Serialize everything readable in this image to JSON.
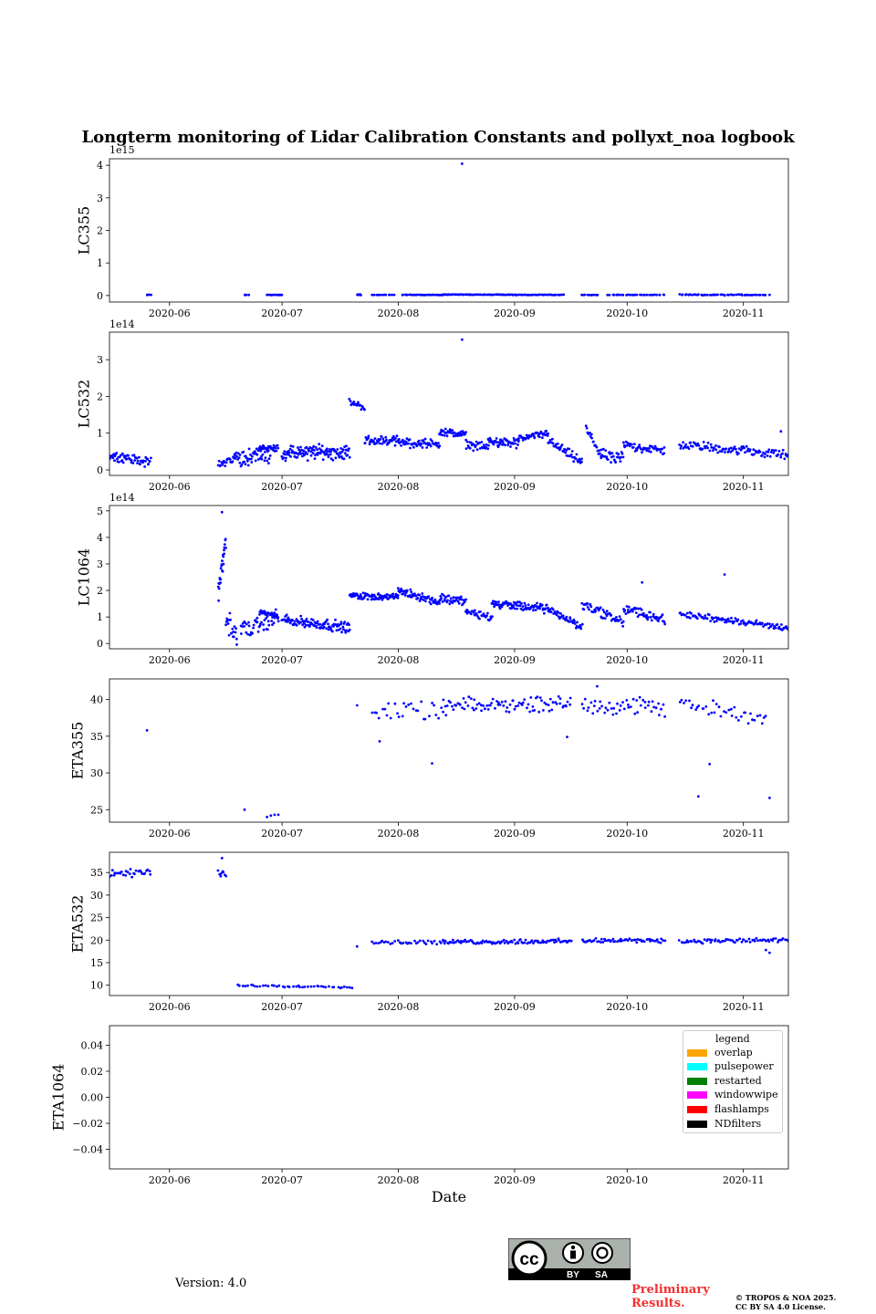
{
  "page": {
    "title": "Longterm monitoring of Lidar Calibration Constants and pollyxt_noa logbook",
    "xlabel": "Date",
    "version": "Version: 4.0",
    "preliminary": [
      "Preliminary",
      "Results."
    ],
    "copyright": [
      "© TROPOS & NOA 2025.",
      "CC BY SA 4.0 License."
    ],
    "license_badge": {
      "cc": "cc",
      "by": "BY",
      "sa": "SA"
    }
  },
  "legend": {
    "title": "legend",
    "items": [
      {
        "label": "overlap",
        "color": "#ffa500"
      },
      {
        "label": "pulsepower",
        "color": "#00ffff"
      },
      {
        "label": "restarted",
        "color": "#008000"
      },
      {
        "label": "windowwipe",
        "color": "#ff00ff"
      },
      {
        "label": "flashlamps",
        "color": "#ff0000"
      },
      {
        "label": "NDfilters",
        "color": "#000000"
      }
    ]
  },
  "chart_data": [
    {
      "type": "scatter",
      "name": "LC355",
      "ylabel": "LC355",
      "scale_text": "1e15",
      "x_domain": [
        "2020-05-16",
        "2020-11-13"
      ],
      "x_ticks": [
        "2020-06",
        "2020-07",
        "2020-08",
        "2020-09",
        "2020-10",
        "2020-11"
      ],
      "y_ticks": [
        0,
        1,
        2,
        3,
        4
      ],
      "ylim": [
        -0.2,
        4.2
      ],
      "color": "#0000ff",
      "segments": [
        {
          "start": "2020-05-26",
          "end": "2020-05-27",
          "y0": 0.02,
          "y1": 0.02,
          "noise": 0.01,
          "count": 4
        },
        {
          "start": "2020-06-21",
          "end": "2020-06-22",
          "y0": 0.02,
          "y1": 0.02,
          "noise": 0.01,
          "count": 3
        },
        {
          "start": "2020-06-27",
          "end": "2020-07-01",
          "y0": 0.02,
          "y1": 0.02,
          "noise": 0.01,
          "count": 12
        },
        {
          "start": "2020-07-21",
          "end": "2020-07-22",
          "y0": 0.04,
          "y1": 0.02,
          "noise": 0.03,
          "count": 6
        },
        {
          "start": "2020-07-25",
          "end": "2020-07-31",
          "y0": 0.02,
          "y1": 0.02,
          "noise": 0.01,
          "count": 12
        },
        {
          "start": "2020-08-02",
          "end": "2020-08-13",
          "y0": 0.02,
          "y1": 0.02,
          "noise": 0.01,
          "count": 30
        },
        {
          "start": "2020-08-13",
          "end": "2020-09-14",
          "y0": 0.03,
          "y1": 0.02,
          "noise": 0.01,
          "count": 90
        },
        {
          "start": "2020-09-19",
          "end": "2020-09-23",
          "y0": 0.02,
          "y1": 0.02,
          "noise": 0.01,
          "count": 10
        },
        {
          "start": "2020-09-26",
          "end": "2020-10-11",
          "y0": 0.02,
          "y1": 0.02,
          "noise": 0.01,
          "count": 30
        },
        {
          "start": "2020-10-15",
          "end": "2020-11-07",
          "y0": 0.02,
          "y1": 0.02,
          "noise": 0.02,
          "count": 50
        }
      ],
      "points": [
        {
          "x": "2020-08-18",
          "y": 4.05
        },
        {
          "x": "2020-11-08",
          "y": 0.02
        }
      ]
    },
    {
      "type": "scatter",
      "name": "LC532",
      "ylabel": "LC532",
      "scale_text": "1e14",
      "x_domain": [
        "2020-05-16",
        "2020-11-13"
      ],
      "x_ticks": [
        "2020-06",
        "2020-07",
        "2020-08",
        "2020-09",
        "2020-10",
        "2020-11"
      ],
      "y_ticks": [
        0,
        1,
        2,
        3
      ],
      "ylim": [
        -0.15,
        3.75
      ],
      "color": "#0000ff",
      "segments": [
        {
          "start": "2020-05-16",
          "end": "2020-05-27",
          "y0": 0.4,
          "y1": 0.2,
          "noise": 0.15,
          "count": 60
        },
        {
          "start": "2020-06-14",
          "end": "2020-06-18",
          "y0": 0.15,
          "y1": 0.3,
          "noise": 0.15,
          "count": 20
        },
        {
          "start": "2020-06-18",
          "end": "2020-06-28",
          "y0": 0.3,
          "y1": 0.45,
          "noise": 0.3,
          "count": 60
        },
        {
          "start": "2020-06-25",
          "end": "2020-06-30",
          "y0": 0.6,
          "y1": 0.6,
          "noise": 0.1,
          "count": 30
        },
        {
          "start": "2020-07-01",
          "end": "2020-07-19",
          "y0": 0.45,
          "y1": 0.5,
          "noise": 0.25,
          "count": 120
        },
        {
          "start": "2020-07-19",
          "end": "2020-07-23",
          "y0": 1.85,
          "y1": 1.7,
          "noise": 0.1,
          "count": 20
        },
        {
          "start": "2020-07-23",
          "end": "2020-08-01",
          "y0": 0.8,
          "y1": 0.8,
          "noise": 0.15,
          "count": 50
        },
        {
          "start": "2020-08-01",
          "end": "2020-08-12",
          "y0": 0.75,
          "y1": 0.7,
          "noise": 0.15,
          "count": 60
        },
        {
          "start": "2020-08-12",
          "end": "2020-08-19",
          "y0": 1.05,
          "y1": 0.95,
          "noise": 0.12,
          "count": 40
        },
        {
          "start": "2020-08-19",
          "end": "2020-08-25",
          "y0": 0.7,
          "y1": 0.6,
          "noise": 0.15,
          "count": 30
        },
        {
          "start": "2020-08-25",
          "end": "2020-09-02",
          "y0": 0.8,
          "y1": 0.7,
          "noise": 0.15,
          "count": 50
        },
        {
          "start": "2020-09-02",
          "end": "2020-09-10",
          "y0": 0.85,
          "y1": 1.0,
          "noise": 0.12,
          "count": 45
        },
        {
          "start": "2020-09-10",
          "end": "2020-09-19",
          "y0": 0.8,
          "y1": 0.2,
          "noise": 0.15,
          "count": 45
        },
        {
          "start": "2020-09-20",
          "end": "2020-09-24",
          "y0": 1.15,
          "y1": 0.4,
          "noise": 0.12,
          "count": 20
        },
        {
          "start": "2020-09-24",
          "end": "2020-09-30",
          "y0": 0.4,
          "y1": 0.3,
          "noise": 0.2,
          "count": 30
        },
        {
          "start": "2020-09-30",
          "end": "2020-10-11",
          "y0": 0.7,
          "y1": 0.5,
          "noise": 0.15,
          "count": 50
        },
        {
          "start": "2020-10-15",
          "end": "2020-11-13",
          "y0": 0.7,
          "y1": 0.4,
          "noise": 0.15,
          "count": 110
        }
      ],
      "points": [
        {
          "x": "2020-08-18",
          "y": 3.55
        },
        {
          "x": "2020-11-11",
          "y": 1.05
        }
      ]
    },
    {
      "type": "scatter",
      "name": "LC1064",
      "ylabel": "LC1064",
      "scale_text": "1e14",
      "x_domain": [
        "2020-05-16",
        "2020-11-13"
      ],
      "x_ticks": [
        "2020-06",
        "2020-07",
        "2020-08",
        "2020-09",
        "2020-10",
        "2020-11"
      ],
      "y_ticks": [
        0,
        1,
        2,
        3,
        4,
        5
      ],
      "ylim": [
        -0.2,
        5.2
      ],
      "color": "#0000ff",
      "segments": [
        {
          "start": "2020-06-14",
          "end": "2020-06-16",
          "y0": 1.8,
          "y1": 3.9,
          "noise": 0.5,
          "count": 25
        },
        {
          "start": "2020-06-16",
          "end": "2020-06-19",
          "y0": 1.0,
          "y1": 0.2,
          "noise": 0.5,
          "count": 20
        },
        {
          "start": "2020-06-20",
          "end": "2020-06-30",
          "y0": 0.5,
          "y1": 1.0,
          "noise": 0.4,
          "count": 50
        },
        {
          "start": "2020-06-25",
          "end": "2020-06-30",
          "y0": 1.2,
          "y1": 1.0,
          "noise": 0.12,
          "count": 30
        },
        {
          "start": "2020-07-01",
          "end": "2020-07-19",
          "y0": 0.9,
          "y1": 0.6,
          "noise": 0.25,
          "count": 110
        },
        {
          "start": "2020-07-19",
          "end": "2020-08-01",
          "y0": 1.8,
          "y1": 1.75,
          "noise": 0.15,
          "count": 80
        },
        {
          "start": "2020-08-01",
          "end": "2020-08-12",
          "y0": 2.0,
          "y1": 1.55,
          "noise": 0.2,
          "count": 70
        },
        {
          "start": "2020-08-12",
          "end": "2020-08-19",
          "y0": 1.7,
          "y1": 1.6,
          "noise": 0.2,
          "count": 40
        },
        {
          "start": "2020-08-19",
          "end": "2020-08-26",
          "y0": 1.2,
          "y1": 1.0,
          "noise": 0.2,
          "count": 35
        },
        {
          "start": "2020-08-26",
          "end": "2020-09-10",
          "y0": 1.5,
          "y1": 1.3,
          "noise": 0.2,
          "count": 90
        },
        {
          "start": "2020-09-10",
          "end": "2020-09-19",
          "y0": 1.3,
          "y1": 0.6,
          "noise": 0.2,
          "count": 45
        },
        {
          "start": "2020-09-19",
          "end": "2020-09-30",
          "y0": 1.5,
          "y1": 0.8,
          "noise": 0.25,
          "count": 55
        },
        {
          "start": "2020-09-30",
          "end": "2020-10-11",
          "y0": 1.3,
          "y1": 0.9,
          "noise": 0.25,
          "count": 50
        },
        {
          "start": "2020-10-15",
          "end": "2020-11-13",
          "y0": 1.1,
          "y1": 0.6,
          "noise": 0.15,
          "count": 110
        }
      ],
      "points": [
        {
          "x": "2020-06-15",
          "y": 4.95
        },
        {
          "x": "2020-10-27",
          "y": 2.6
        },
        {
          "x": "2020-10-05",
          "y": 2.3
        }
      ]
    },
    {
      "type": "scatter",
      "name": "ETA355",
      "ylabel": "ETA355",
      "scale_text": "",
      "x_domain": [
        "2020-05-16",
        "2020-11-13"
      ],
      "x_ticks": [
        "2020-06",
        "2020-07",
        "2020-08",
        "2020-09",
        "2020-10",
        "2020-11"
      ],
      "y_ticks": [
        25,
        30,
        35,
        40
      ],
      "ylim": [
        23.3,
        42.8
      ],
      "color": "#0000ff",
      "segments": [
        {
          "start": "2020-07-25",
          "end": "2020-08-13",
          "y0": 38.0,
          "y1": 38.5,
          "noise": 1.5,
          "count": 30
        },
        {
          "start": "2020-08-13",
          "end": "2020-09-16",
          "y0": 39.0,
          "y1": 39.5,
          "noise": 1.3,
          "count": 90
        },
        {
          "start": "2020-09-19",
          "end": "2020-10-11",
          "y0": 39.5,
          "y1": 38.8,
          "noise": 1.5,
          "count": 50
        },
        {
          "start": "2020-10-15",
          "end": "2020-11-07",
          "y0": 39.5,
          "y1": 37.5,
          "noise": 1.2,
          "count": 40
        }
      ],
      "points": [
        {
          "x": "2020-05-26",
          "y": 35.8
        },
        {
          "x": "2020-06-21",
          "y": 25.0
        },
        {
          "x": "2020-06-27",
          "y": 24.0
        },
        {
          "x": "2020-06-28",
          "y": 24.2
        },
        {
          "x": "2020-06-30",
          "y": 24.3
        },
        {
          "x": "2020-06-29",
          "y": 24.3
        },
        {
          "x": "2020-07-21",
          "y": 39.2
        },
        {
          "x": "2020-07-27",
          "y": 34.3
        },
        {
          "x": "2020-08-10",
          "y": 31.3
        },
        {
          "x": "2020-09-15",
          "y": 34.9
        },
        {
          "x": "2020-10-20",
          "y": 26.8
        },
        {
          "x": "2020-10-23",
          "y": 31.2
        },
        {
          "x": "2020-11-08",
          "y": 26.6
        },
        {
          "x": "2020-09-23",
          "y": 41.8
        }
      ]
    },
    {
      "type": "scatter",
      "name": "ETA532",
      "ylabel": "ETA532",
      "scale_text": "",
      "x_domain": [
        "2020-05-16",
        "2020-11-13"
      ],
      "x_ticks": [
        "2020-06",
        "2020-07",
        "2020-08",
        "2020-09",
        "2020-10",
        "2020-11"
      ],
      "y_ticks": [
        10,
        15,
        20,
        25,
        30,
        35
      ],
      "ylim": [
        7.7,
        39.5
      ],
      "color": "#0000ff",
      "segments": [
        {
          "start": "2020-05-16",
          "end": "2020-05-27",
          "y0": 34.5,
          "y1": 35.0,
          "noise": 1.2,
          "count": 30
        },
        {
          "start": "2020-06-14",
          "end": "2020-06-16",
          "y0": 35.0,
          "y1": 34.5,
          "noise": 1.0,
          "count": 8
        },
        {
          "start": "2020-06-19",
          "end": "2020-07-20",
          "y0": 9.9,
          "y1": 9.6,
          "noise": 0.3,
          "count": 45
        },
        {
          "start": "2020-07-25",
          "end": "2020-08-13",
          "y0": 19.5,
          "y1": 19.6,
          "noise": 0.6,
          "count": 35
        },
        {
          "start": "2020-08-13",
          "end": "2020-09-16",
          "y0": 19.5,
          "y1": 19.8,
          "noise": 0.6,
          "count": 100
        },
        {
          "start": "2020-09-19",
          "end": "2020-10-11",
          "y0": 19.8,
          "y1": 20.0,
          "noise": 0.6,
          "count": 60
        },
        {
          "start": "2020-10-15",
          "end": "2020-11-13",
          "y0": 19.7,
          "y1": 20.0,
          "noise": 0.6,
          "count": 70
        }
      ],
      "points": [
        {
          "x": "2020-06-15",
          "y": 38.2
        },
        {
          "x": "2020-07-21",
          "y": 18.6
        },
        {
          "x": "2020-11-07",
          "y": 17.8
        },
        {
          "x": "2020-11-08",
          "y": 17.2
        }
      ]
    },
    {
      "type": "scatter",
      "name": "ETA1064",
      "ylabel": "ETA1064",
      "scale_text": "",
      "x_domain": [
        "2020-05-16",
        "2020-11-13"
      ],
      "x_ticks": [
        "2020-06",
        "2020-07",
        "2020-08",
        "2020-09",
        "2020-10",
        "2020-11"
      ],
      "y_ticks": [
        -0.04,
        -0.02,
        0.0,
        0.02,
        0.04
      ],
      "y_tick_labels": [
        "−0.04",
        "−0.02",
        "0.00",
        "0.02",
        "0.04"
      ],
      "ylim": [
        -0.055,
        0.055
      ],
      "color": "#0000ff",
      "segments": [],
      "points": []
    }
  ]
}
